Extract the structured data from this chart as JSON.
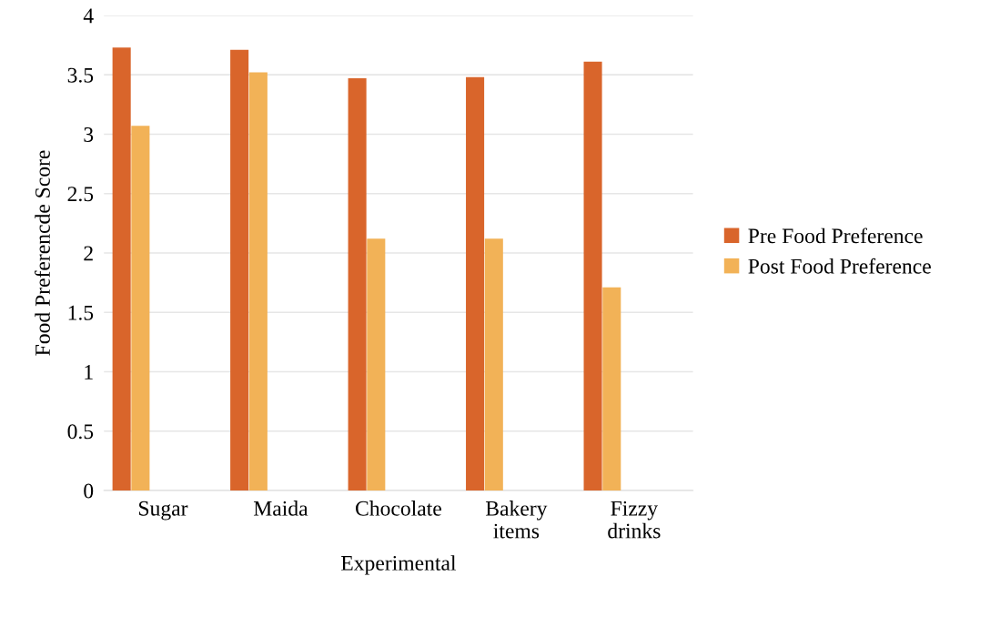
{
  "chart_data": {
    "type": "bar",
    "xlabel": "Experimental",
    "ylabel": "Food Preferencde Score",
    "categories": [
      "Sugar",
      "Maida",
      "Chocolate",
      "Bakery\nitems",
      "Fizzy\ndrinks"
    ],
    "series": [
      {
        "name": "Pre Food Preference",
        "color": "#d9652b",
        "values": [
          3.73,
          3.71,
          3.47,
          3.48,
          3.61
        ]
      },
      {
        "name": "Post Food Preference",
        "color": "#f2b257",
        "values": [
          3.07,
          3.52,
          2.12,
          2.12,
          1.71
        ]
      }
    ],
    "ylim": [
      0,
      4
    ],
    "yticks": [
      0,
      0.5,
      1,
      1.5,
      2,
      2.5,
      3,
      3.5,
      4
    ],
    "grid": "y",
    "legend": "right"
  }
}
